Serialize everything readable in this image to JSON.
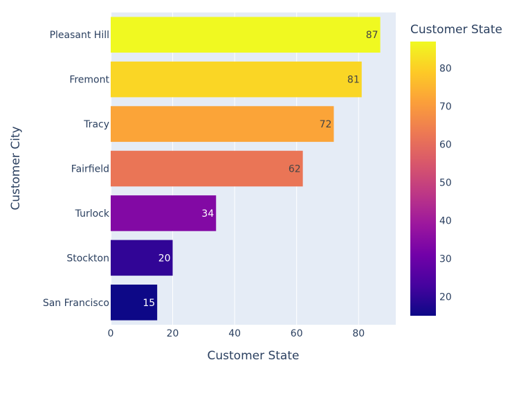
{
  "chart_data": {
    "type": "bar",
    "orientation": "horizontal",
    "categories": [
      "San Francisco",
      "Stockton",
      "Turlock",
      "Fairfield",
      "Tracy",
      "Fremont",
      "Pleasant Hill"
    ],
    "values": [
      15,
      20,
      34,
      62,
      72,
      81,
      87
    ],
    "xlabel": "Customer State",
    "ylabel": "Customer City",
    "xlim": [
      0,
      92
    ],
    "x_ticks": [
      "0",
      "20",
      "40",
      "60",
      "80"
    ],
    "grid": true,
    "plot_background": "#e5ecf6",
    "colorbar": {
      "title": "Customer State",
      "range": [
        15,
        87
      ],
      "ticks": [
        "20",
        "30",
        "40",
        "50",
        "60",
        "70",
        "80"
      ],
      "colorscale": [
        "#0d0887",
        "#46039f",
        "#7201a8",
        "#9c179e",
        "#bd3786",
        "#d8576b",
        "#ed7953",
        "#fb9f3a",
        "#fdca26",
        "#f0f921"
      ]
    }
  }
}
